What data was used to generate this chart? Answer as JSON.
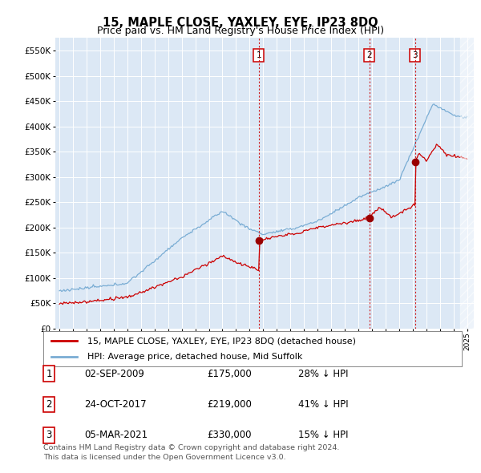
{
  "title": "15, MAPLE CLOSE, YAXLEY, EYE, IP23 8DQ",
  "subtitle": "Price paid vs. HM Land Registry's House Price Index (HPI)",
  "ylim": [
    0,
    575000
  ],
  "yticks": [
    0,
    50000,
    100000,
    150000,
    200000,
    250000,
    300000,
    350000,
    400000,
    450000,
    500000,
    550000
  ],
  "ytick_labels": [
    "£0",
    "£50K",
    "£100K",
    "£150K",
    "£200K",
    "£250K",
    "£300K",
    "£350K",
    "£400K",
    "£450K",
    "£500K",
    "£550K"
  ],
  "background_color": "#dce8f5",
  "red_line_color": "#cc0000",
  "blue_line_color": "#7aadd4",
  "sale_dates": [
    2009.67,
    2017.81,
    2021.17
  ],
  "sale_prices": [
    175000,
    219000,
    330000
  ],
  "sale_labels": [
    "1",
    "2",
    "3"
  ],
  "legend_red": "15, MAPLE CLOSE, YAXLEY, EYE, IP23 8DQ (detached house)",
  "legend_blue": "HPI: Average price, detached house, Mid Suffolk",
  "table_rows": [
    [
      "1",
      "02-SEP-2009",
      "£175,000",
      "28% ↓ HPI"
    ],
    [
      "2",
      "24-OCT-2017",
      "£219,000",
      "41% ↓ HPI"
    ],
    [
      "3",
      "05-MAR-2021",
      "£330,000",
      "15% ↓ HPI"
    ]
  ],
  "footer": "Contains HM Land Registry data © Crown copyright and database right 2024.\nThis data is licensed under the Open Government Licence v3.0.",
  "title_fontsize": 10.5,
  "tick_fontsize": 7.5,
  "legend_fontsize": 8.0,
  "table_fontsize": 8.5
}
